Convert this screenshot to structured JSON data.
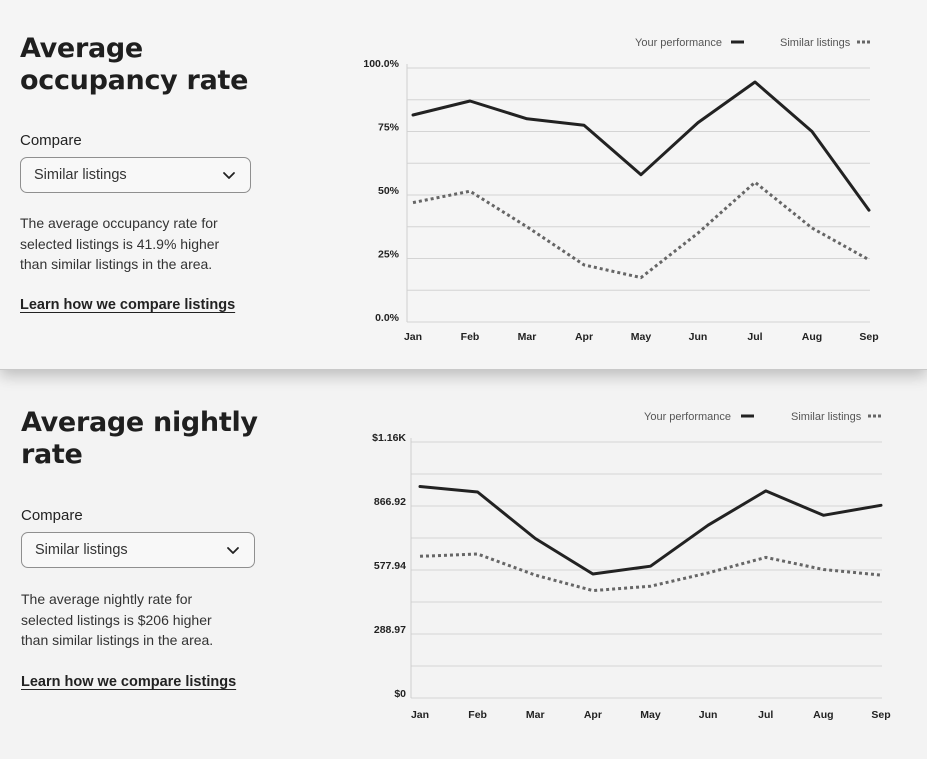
{
  "panels": [
    {
      "title_line1": "Average",
      "title_line2": "occupancy rate",
      "compare_label": "Compare",
      "compare_value": "Similar listings",
      "description": [
        "The average occupancy rate for",
        "selected listings is 41.9% higher",
        "than similar listings in the area."
      ],
      "learn_link": "Learn how we compare listings"
    },
    {
      "title_line1": "Average nightly",
      "title_line2": "rate",
      "compare_label": "Compare",
      "compare_value": "Similar listings",
      "description": [
        "The average nightly rate for",
        "selected listings is $206 higher",
        "than similar listings in the area."
      ],
      "learn_link": "Learn how we compare listings"
    }
  ],
  "chart_data": [
    {
      "type": "line",
      "title": "Average occupancy rate",
      "x": [
        "Jan",
        "Feb",
        "Mar",
        "Apr",
        "May",
        "Jun",
        "Jul",
        "Aug",
        "Sep"
      ],
      "y_ticks": [
        "0.0%",
        "25%",
        "50%",
        "75%",
        "100.0%"
      ],
      "ylim": [
        0,
        100
      ],
      "grid": true,
      "legend_position": "top-right",
      "series": [
        {
          "name": "Your performance",
          "style": "solid",
          "color": "#222222",
          "values": [
            81.5,
            87,
            80,
            77.5,
            58,
            78.5,
            94.5,
            75,
            44
          ]
        },
        {
          "name": "Similar listings",
          "style": "dotted",
          "color": "#666666",
          "values": [
            47,
            51.5,
            37.5,
            22.5,
            17.5,
            35,
            55,
            37,
            24.5
          ]
        }
      ]
    },
    {
      "type": "line",
      "title": "Average nightly rate",
      "x": [
        "Jan",
        "Feb",
        "Mar",
        "Apr",
        "May",
        "Jun",
        "Jul",
        "Aug",
        "Sep"
      ],
      "y_ticks": [
        "$0",
        "288.97",
        "577.94",
        "866.92",
        "$1.16K"
      ],
      "ylim": [
        0,
        1155.89
      ],
      "grid": true,
      "legend_position": "top-right",
      "series": [
        {
          "name": "Your performance",
          "style": "solid",
          "color": "#222222",
          "values": [
            955,
            930,
            720,
            560,
            595,
            780,
            935,
            825,
            870
          ]
        },
        {
          "name": "Similar listings",
          "style": "dotted",
          "color": "#666666",
          "values": [
            640,
            650,
            555,
            485,
            505,
            565,
            635,
            580,
            555
          ]
        }
      ]
    }
  ],
  "icons": {
    "dropdown": "chevron-down-icon"
  }
}
